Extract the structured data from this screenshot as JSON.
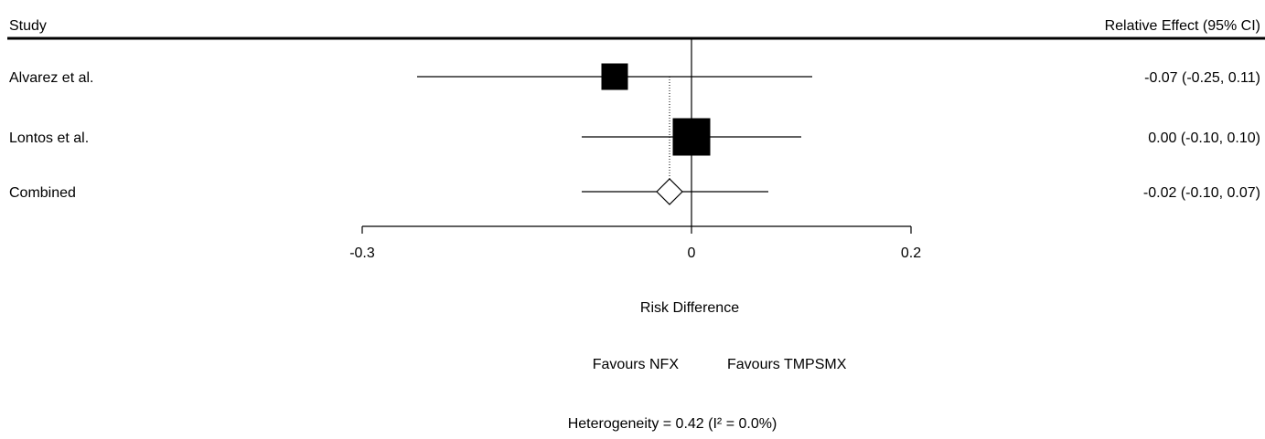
{
  "header": {
    "study_label": "Study",
    "effect_label": "Relative Effect (95% CI)"
  },
  "chart_data": {
    "type": "forest",
    "studies": [
      {
        "name": "Alvarez et al.",
        "estimate": -0.07,
        "lower": -0.25,
        "upper": 0.11,
        "effect_text": "-0.07 (-0.25, 0.11)"
      },
      {
        "name": "Lontos et al.",
        "estimate": 0.0,
        "lower": -0.1,
        "upper": 0.1,
        "effect_text": "0.00 (-0.10, 0.10)"
      }
    ],
    "combined": {
      "name": "Combined",
      "estimate": -0.02,
      "lower": -0.1,
      "upper": 0.07,
      "effect_text": "-0.02 (-0.10, 0.07)"
    },
    "xaxis": {
      "range": [
        -0.3,
        0.2
      ],
      "ticks": [
        {
          "value": -0.3,
          "label": "-0.3"
        },
        {
          "value": 0,
          "label": "0"
        },
        {
          "value": 0.2,
          "label": "0.2"
        }
      ],
      "label": "Risk Difference"
    },
    "favours_left": "Favours NFX",
    "favours_right": "Favours TMPSMX",
    "heterogeneity": "Heterogeneity = 0.42 (I² = 0.0%)",
    "null_line": 0
  }
}
